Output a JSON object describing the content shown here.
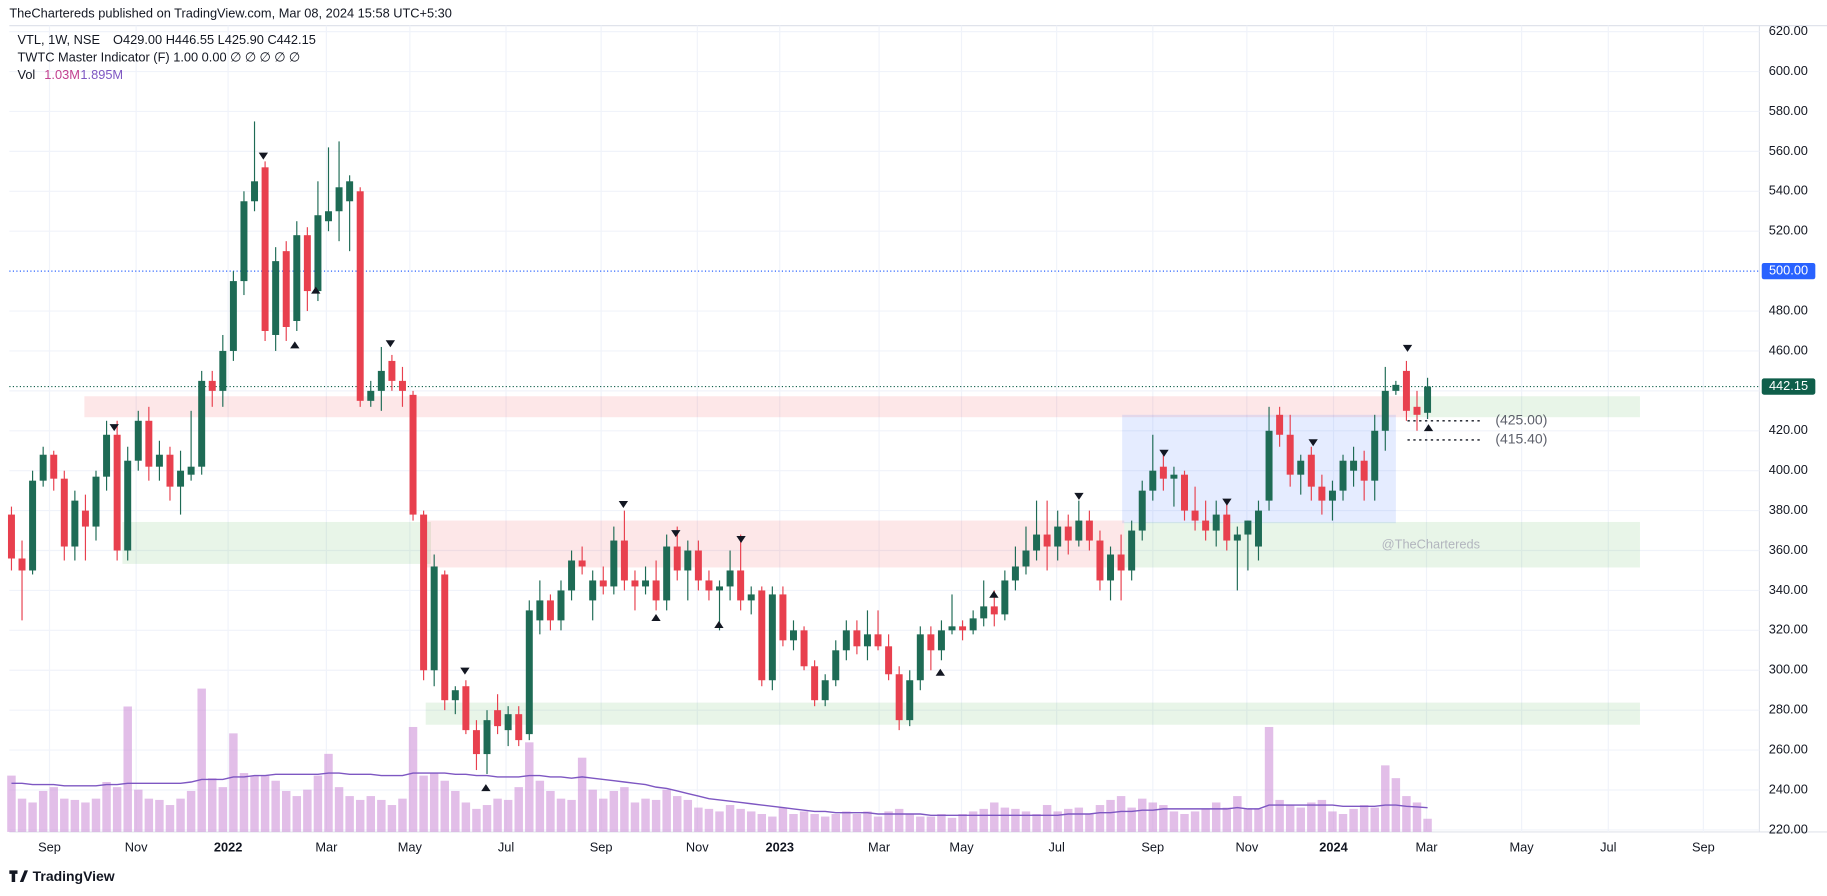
{
  "header": {
    "published": "TheChartereds published on TradingView.com, Mar 08, 2024 15:58 UTC+5:30",
    "symbol": "VTL, 1W, NSE",
    "ohlc": "O429.00  H446.55  L425.90  C442.15",
    "indicator": "TWTC Master Indicator (F)  1.00  0.00  ∅  ∅  ∅  ∅  ∅",
    "vol_label": "Vol",
    "vol_value": "1.03M",
    "vol_ma": "1.895M"
  },
  "footer": {
    "brand": "TradingView"
  },
  "watermark": "@TheChartereds",
  "chart_data": {
    "type": "candlestick",
    "up_color": "#1e6b55",
    "down_color": "#e8404e",
    "grid": true,
    "ylim": [
      219,
      623
    ],
    "yticks": [
      {
        "value": 220,
        "label": "220.00"
      },
      {
        "value": 240,
        "label": "240.00"
      },
      {
        "value": 260,
        "label": "260.00"
      },
      {
        "value": 280,
        "label": "280.00"
      },
      {
        "value": 300,
        "label": "300.00"
      },
      {
        "value": 320,
        "label": "320.00"
      },
      {
        "value": 340,
        "label": "340.00"
      },
      {
        "value": 360,
        "label": "360.00"
      },
      {
        "value": 380,
        "label": "380.00"
      },
      {
        "value": 400,
        "label": "400.00"
      },
      {
        "value": 420,
        "label": "420.00"
      },
      {
        "value": 440,
        "label": "440.00"
      },
      {
        "value": 460,
        "label": "460.00"
      },
      {
        "value": 480,
        "label": "480.00"
      },
      {
        "value": 520,
        "label": "520.00"
      },
      {
        "value": 540,
        "label": "540.00"
      },
      {
        "value": 560,
        "label": "560.00"
      },
      {
        "value": 580,
        "label": "580.00"
      },
      {
        "value": 600,
        "label": "600.00"
      },
      {
        "value": 620,
        "label": "620.00"
      }
    ],
    "xlim": [
      -0.2,
      165.4
    ],
    "xticks": [
      {
        "value": 3.6,
        "label": "Sep"
      },
      {
        "value": 11.8,
        "label": "Nov"
      },
      {
        "value": 20.5,
        "label": "2022"
      },
      {
        "value": 29.8,
        "label": "Mar"
      },
      {
        "value": 37.7,
        "label": "May"
      },
      {
        "value": 46.8,
        "label": "Jul"
      },
      {
        "value": 55.8,
        "label": "Sep"
      },
      {
        "value": 64.9,
        "label": "Nov"
      },
      {
        "value": 72.7,
        "label": "2023"
      },
      {
        "value": 82.1,
        "label": "Mar"
      },
      {
        "value": 89.9,
        "label": "May"
      },
      {
        "value": 98.9,
        "label": "Jul"
      },
      {
        "value": 108,
        "label": "Sep"
      },
      {
        "value": 116.9,
        "label": "Nov"
      },
      {
        "value": 125.1,
        "label": "2024"
      },
      {
        "value": 133.9,
        "label": "Mar"
      },
      {
        "value": 142.9,
        "label": "May"
      },
      {
        "value": 151.1,
        "label": "Jul"
      },
      {
        "value": 160.1,
        "label": "Sep"
      }
    ],
    "price_lines": [
      {
        "value": 500,
        "label": "500.00",
        "color": "#2962ff"
      },
      {
        "value": 442.15,
        "label": "442.15",
        "color": "#0f5e4a"
      }
    ],
    "levels": [
      {
        "value": 425,
        "label": "(425.00)",
        "from": 132.1,
        "to": 139.2
      },
      {
        "value": 415.4,
        "label": "(415.40)",
        "from": 132.1,
        "to": 139.2
      }
    ],
    "zones": [
      {
        "start": 6.9,
        "end": 132.3,
        "low": 426.8,
        "high": 437.3,
        "color": "rgba(242,54,69,0.12)"
      },
      {
        "start": 132.3,
        "end": 154.1,
        "low": 426.8,
        "high": 437.3,
        "color": "rgba(76,175,80,0.13)"
      },
      {
        "start": 10.5,
        "end": 39.7,
        "low": 353.3,
        "high": 374.3,
        "color": "rgba(76,175,80,0.13)"
      },
      {
        "start": 39.2,
        "end": 105.3,
        "low": 351.5,
        "high": 375,
        "color": "rgba(242,54,69,0.12)"
      },
      {
        "start": 105.3,
        "end": 154.1,
        "low": 351.5,
        "high": 374.3,
        "color": "rgba(76,175,80,0.13)"
      },
      {
        "start": 105.1,
        "end": 131,
        "low": 373.7,
        "high": 428,
        "color": "rgba(41,98,255,0.12)"
      },
      {
        "start": 39.2,
        "end": 154.1,
        "low": 272.7,
        "high": 283.8,
        "color": "rgba(76,175,80,0.13)"
      }
    ],
    "ohlc": [
      [
        378,
        382,
        350,
        356
      ],
      [
        356,
        365,
        325,
        350
      ],
      [
        350,
        400,
        348,
        395
      ],
      [
        395,
        412,
        392,
        408
      ],
      [
        408,
        410,
        390,
        396
      ],
      [
        396,
        400,
        355,
        362
      ],
      [
        362,
        390,
        355,
        385
      ],
      [
        380,
        388,
        355,
        372
      ],
      [
        372,
        400,
        365,
        397
      ],
      [
        397,
        425,
        390,
        418
      ],
      [
        418,
        425,
        355,
        360
      ],
      [
        360,
        412,
        355,
        405
      ],
      [
        405,
        430,
        400,
        425
      ],
      [
        425,
        432,
        395,
        402
      ],
      [
        402,
        415,
        395,
        408
      ],
      [
        408,
        412,
        385,
        392
      ],
      [
        392,
        410,
        378,
        400
      ],
      [
        398,
        430,
        395,
        402
      ],
      [
        402,
        450,
        398,
        445
      ],
      [
        445,
        450,
        432,
        440
      ],
      [
        440,
        468,
        432,
        460
      ],
      [
        460,
        500,
        455,
        495
      ],
      [
        495,
        540,
        488,
        535
      ],
      [
        535,
        575,
        530,
        545
      ],
      [
        552,
        555,
        465,
        470
      ],
      [
        468,
        512,
        460,
        505
      ],
      [
        510,
        515,
        465,
        472
      ],
      [
        475,
        525,
        470,
        518
      ],
      [
        518,
        522,
        480,
        490
      ],
      [
        490,
        545,
        485,
        528
      ],
      [
        525,
        562,
        520,
        530
      ],
      [
        530,
        565,
        515,
        542
      ],
      [
        535,
        548,
        510,
        545
      ],
      [
        540,
        542,
        432,
        435
      ],
      [
        435,
        445,
        432,
        440
      ],
      [
        440,
        462,
        430,
        450
      ],
      [
        455,
        458,
        440,
        445
      ],
      [
        445,
        452,
        432,
        440
      ],
      [
        438,
        440,
        375,
        378
      ],
      [
        378,
        380,
        295,
        300
      ],
      [
        300,
        358,
        292,
        352
      ],
      [
        348,
        350,
        280,
        285
      ],
      [
        285,
        292,
        278,
        290
      ],
      [
        292,
        295,
        268,
        270
      ],
      [
        270,
        275,
        250,
        258
      ],
      [
        258,
        280,
        248,
        275
      ],
      [
        280,
        288,
        268,
        272
      ],
      [
        270,
        282,
        262,
        278
      ],
      [
        278,
        282,
        262,
        265
      ],
      [
        268,
        335,
        265,
        330
      ],
      [
        325,
        345,
        318,
        335
      ],
      [
        335,
        338,
        320,
        325
      ],
      [
        325,
        345,
        320,
        340
      ],
      [
        340,
        360,
        335,
        355
      ],
      [
        355,
        362,
        348,
        352
      ],
      [
        335,
        350,
        325,
        345
      ],
      [
        345,
        352,
        338,
        342
      ],
      [
        342,
        372,
        338,
        365
      ],
      [
        365,
        380,
        340,
        345
      ],
      [
        345,
        350,
        330,
        342
      ],
      [
        342,
        352,
        338,
        345
      ],
      [
        345,
        355,
        330,
        335
      ],
      [
        335,
        368,
        330,
        362
      ],
      [
        362,
        372,
        345,
        350
      ],
      [
        350,
        365,
        335,
        360
      ],
      [
        360,
        365,
        340,
        345
      ],
      [
        345,
        350,
        335,
        340
      ],
      [
        340,
        345,
        320,
        342
      ],
      [
        342,
        360,
        335,
        350
      ],
      [
        350,
        368,
        330,
        335
      ],
      [
        335,
        342,
        328,
        338
      ],
      [
        340,
        342,
        292,
        295
      ],
      [
        295,
        342,
        290,
        338
      ],
      [
        338,
        342,
        312,
        315
      ],
      [
        315,
        325,
        310,
        320
      ],
      [
        320,
        322,
        300,
        302
      ],
      [
        302,
        305,
        282,
        285
      ],
      [
        285,
        298,
        282,
        295
      ],
      [
        295,
        315,
        292,
        310
      ],
      [
        310,
        325,
        305,
        320
      ],
      [
        320,
        325,
        308,
        312
      ],
      [
        312,
        330,
        305,
        318
      ],
      [
        318,
        330,
        310,
        312
      ],
      [
        312,
        318,
        295,
        298
      ],
      [
        298,
        302,
        270,
        275
      ],
      [
        275,
        300,
        272,
        295
      ],
      [
        295,
        322,
        290,
        318
      ],
      [
        318,
        322,
        300,
        310
      ],
      [
        310,
        325,
        305,
        320
      ],
      [
        320,
        338,
        318,
        322
      ],
      [
        322,
        325,
        315,
        320
      ],
      [
        320,
        330,
        318,
        326
      ],
      [
        326,
        345,
        322,
        332
      ],
      [
        332,
        340,
        322,
        328
      ],
      [
        328,
        350,
        325,
        345
      ],
      [
        345,
        362,
        340,
        352
      ],
      [
        352,
        372,
        348,
        360
      ],
      [
        360,
        385,
        355,
        368
      ],
      [
        368,
        385,
        350,
        362
      ],
      [
        362,
        380,
        355,
        372
      ],
      [
        372,
        378,
        358,
        365
      ],
      [
        365,
        385,
        362,
        375
      ],
      [
        375,
        380,
        360,
        365
      ],
      [
        365,
        370,
        340,
        345
      ],
      [
        345,
        362,
        335,
        358
      ],
      [
        358,
        368,
        335,
        350
      ],
      [
        350,
        375,
        345,
        370
      ],
      [
        370,
        395,
        365,
        390
      ],
      [
        390,
        418,
        385,
        400
      ],
      [
        402,
        410,
        390,
        396
      ],
      [
        396,
        402,
        382,
        398
      ],
      [
        398,
        400,
        375,
        380
      ],
      [
        380,
        392,
        370,
        375
      ],
      [
        375,
        385,
        365,
        370
      ],
      [
        370,
        385,
        362,
        378
      ],
      [
        378,
        385,
        360,
        365
      ],
      [
        365,
        372,
        340,
        368
      ],
      [
        368,
        375,
        350,
        375
      ],
      [
        362,
        385,
        355,
        380
      ],
      [
        385,
        432,
        380,
        420
      ],
      [
        428,
        432,
        412,
        418
      ],
      [
        418,
        428,
        392,
        398
      ],
      [
        398,
        408,
        388,
        405
      ],
      [
        408,
        412,
        385,
        392
      ],
      [
        392,
        398,
        378,
        385
      ],
      [
        385,
        395,
        375,
        390
      ],
      [
        390,
        408,
        385,
        405
      ],
      [
        400,
        412,
        392,
        405
      ],
      [
        405,
        410,
        385,
        395
      ],
      [
        395,
        428,
        385,
        420
      ],
      [
        420,
        452,
        410,
        440
      ],
      [
        440,
        445,
        438,
        443
      ],
      [
        450,
        455,
        425,
        430
      ],
      [
        432,
        440,
        420,
        428
      ],
      [
        429,
        446.55,
        425.9,
        442.15
      ]
    ],
    "volume_color": "rgba(206,147,216,0.6)",
    "volume_ma_color": "#7e57c2",
    "vol_lim": [
      0,
      63
    ],
    "volume": [
      4.4,
      2.6,
      2.3,
      3.2,
      3.5,
      2.6,
      2.5,
      2.3,
      2.6,
      3.9,
      3.5,
      9.8,
      3.3,
      2.6,
      2.5,
      2.1,
      2.6,
      3.2,
      11.2,
      4.2,
      3.5,
      7.7,
      4.6,
      4.4,
      4.4,
      4.0,
      3.2,
      2.8,
      3.3,
      4.4,
      6.1,
      3.5,
      2.8,
      2.5,
      2.8,
      2.5,
      2.1,
      2.6,
      8.2,
      4.4,
      4.6,
      4.0,
      3.2,
      2.3,
      1.8,
      2.1,
      2.6,
      2.5,
      3.5,
      7.0,
      4.0,
      3.2,
      2.6,
      2.5,
      5.8,
      3.3,
      2.6,
      3.2,
      3.5,
      2.3,
      2.6,
      2.5,
      3.3,
      2.8,
      2.5,
      1.9,
      1.8,
      1.6,
      2.1,
      1.8,
      1.6,
      1.4,
      1.2,
      1.9,
      1.4,
      1.6,
      1.4,
      1.2,
      1.4,
      1.6,
      1.4,
      1.6,
      1.2,
      1.6,
      1.8,
      1.4,
      1.2,
      1.2,
      1.4,
      1.1,
      1.4,
      1.6,
      1.8,
      2.3,
      1.9,
      1.8,
      1.6,
      1.4,
      2.1,
      1.6,
      1.8,
      1.9,
      1.4,
      2.1,
      2.5,
      2.8,
      1.9,
      2.6,
      2.3,
      2.1,
      1.6,
      1.4,
      1.6,
      1.8,
      2.3,
      1.9,
      2.8,
      1.8,
      1.8,
      8.2,
      2.5,
      2.1,
      1.9,
      2.3,
      2.5,
      1.6,
      1.4,
      1.8,
      2.1,
      1.9,
      5.2,
      4.2,
      2.8,
      2.3,
      1.03
    ],
    "volume_ma": [
      3.8,
      3.8,
      3.7,
      3.7,
      3.7,
      3.6,
      3.6,
      3.6,
      3.6,
      3.7,
      3.7,
      3.8,
      3.8,
      3.8,
      3.8,
      3.8,
      3.8,
      3.9,
      4.1,
      4.1,
      4.1,
      4.3,
      4.3,
      4.4,
      4.4,
      4.5,
      4.5,
      4.5,
      4.5,
      4.5,
      4.6,
      4.6,
      4.5,
      4.5,
      4.5,
      4.4,
      4.4,
      4.4,
      4.6,
      4.6,
      4.6,
      4.6,
      4.5,
      4.5,
      4.4,
      4.4,
      4.3,
      4.3,
      4.3,
      4.4,
      4.4,
      4.3,
      4.3,
      4.2,
      4.3,
      4.2,
      4.1,
      4.0,
      3.9,
      3.8,
      3.7,
      3.5,
      3.4,
      3.2,
      3.0,
      2.8,
      2.6,
      2.5,
      2.4,
      2.3,
      2.2,
      2.1,
      2.0,
      1.9,
      1.8,
      1.7,
      1.6,
      1.6,
      1.5,
      1.5,
      1.5,
      1.5,
      1.4,
      1.4,
      1.4,
      1.4,
      1.4,
      1.3,
      1.3,
      1.3,
      1.3,
      1.3,
      1.3,
      1.3,
      1.3,
      1.3,
      1.3,
      1.3,
      1.3,
      1.3,
      1.4,
      1.4,
      1.4,
      1.5,
      1.5,
      1.6,
      1.6,
      1.7,
      1.7,
      1.8,
      1.8,
      1.8,
      1.8,
      1.8,
      1.8,
      1.8,
      1.9,
      1.8,
      1.8,
      2.1,
      2.1,
      2.1,
      2.1,
      2.1,
      2.1,
      2.1,
      2.0,
      2.0,
      2.0,
      2.0,
      2.1,
      2.1,
      2.0,
      1.95,
      1.895
    ]
  }
}
